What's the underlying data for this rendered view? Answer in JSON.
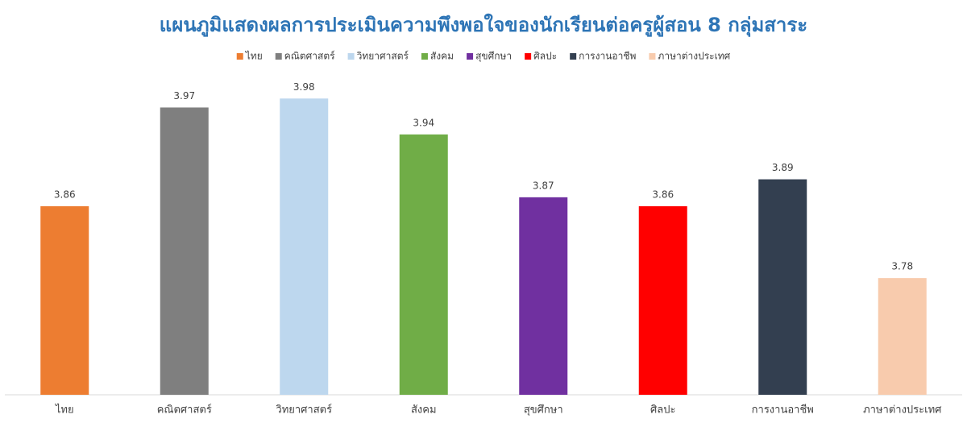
{
  "chart_data": {
    "type": "bar",
    "title": "แผนภูมิแสดงผลการประเมินความพึงพอใจของนักเรียนต่อครูผู้สอน 8 กลุ่มสาระ",
    "categories": [
      "ไทย",
      "คณิตศาสตร์",
      "วิทยาศาสตร์",
      "สังคม",
      "สุขศึกษา",
      "ศิลปะ",
      "การงานอาชีพ",
      "ภาษาต่างประเทศ"
    ],
    "values": [
      3.86,
      3.97,
      3.98,
      3.94,
      3.87,
      3.86,
      3.89,
      3.78
    ],
    "colors": [
      "#ed7d31",
      "#7f7f7f",
      "#bdd7ee",
      "#70ad47",
      "#7030a0",
      "#ff0000",
      "#333f50",
      "#f8cbad"
    ],
    "ylim": [
      3.65,
      4.0
    ],
    "legend": "top"
  }
}
